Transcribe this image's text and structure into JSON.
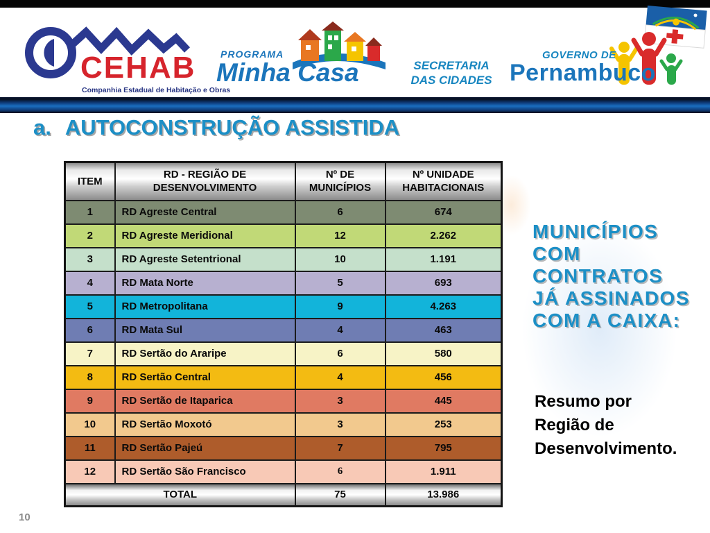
{
  "header": {
    "cehab": {
      "name": "CEHAB",
      "subtitle": "Companhia Estadual de Habitação e Obras"
    },
    "minha_casa": {
      "programa": "PROGRAMA",
      "title": "Minha Casa"
    },
    "secretaria": {
      "line1": "SECRETARIA",
      "line2": "DAS CIDADES"
    },
    "governo": {
      "line1": "GOVERNO DE",
      "line2": "Pernambuco"
    }
  },
  "slide": {
    "title_marker": "a.",
    "title": "AUTOCONSTRUÇÃO ASSISTIDA",
    "page_number": "10"
  },
  "table": {
    "columns": [
      "ITEM",
      "RD - REGIÃO DE DESENVOLVIMENTO",
      "Nº DE MUNICÍPIOS",
      "Nº UNIDADE HABITACIONAIS"
    ],
    "rows": [
      {
        "item": "1",
        "rd": "RD Agreste Central",
        "municipios": "6",
        "unidades": "674",
        "color": "#7E8B72"
      },
      {
        "item": "2",
        "rd": "RD Agreste Meridional",
        "municipios": "12",
        "unidades": "2.262",
        "color": "#C1D977"
      },
      {
        "item": "3",
        "rd": "RD Agreste Setentrional",
        "municipios": "10",
        "unidades": "1.191",
        "color": "#C5E0CB"
      },
      {
        "item": "4",
        "rd": "RD Mata Norte",
        "municipios": "5",
        "unidades": "693",
        "color": "#B7B0D0"
      },
      {
        "item": "5",
        "rd": "RD Metropolitana",
        "municipios": "9",
        "unidades": "4.263",
        "color": "#12B4DA"
      },
      {
        "item": "6",
        "rd": "RD Mata Sul",
        "municipios": "4",
        "unidades": "463",
        "color": "#6F7DB3"
      },
      {
        "item": "7",
        "rd": "RD Sertão do Araripe",
        "municipios": "6",
        "unidades": "580",
        "color": "#F7F3C6"
      },
      {
        "item": "8",
        "rd": "RD Sertão Central",
        "municipios": "4",
        "unidades": "456",
        "color": "#F3BB12"
      },
      {
        "item": "9",
        "rd": "RD Sertão de Itaparica",
        "municipios": "3",
        "unidades": "445",
        "color": "#E07A62"
      },
      {
        "item": "10",
        "rd": "RD Sertão Moxotó",
        "municipios": "3",
        "unidades": "253",
        "color": "#F2C98E"
      },
      {
        "item": "11",
        "rd": "RD Sertão Pajeú",
        "municipios": "7",
        "unidades": "795",
        "color": "#AE5C2B"
      },
      {
        "item": "12",
        "rd": "RD Sertão São Francisco",
        "municipios": "6",
        "unidades": "1.911",
        "color": "#F8C9B6",
        "municipios_serif": true
      }
    ],
    "total": {
      "label": "TOTAL",
      "municipios": "75",
      "unidades": "13.986"
    }
  },
  "side": {
    "caixa": {
      "line1": "MUNICÍPIOS",
      "line2": "COM",
      "line3": "CONTRATOS",
      "line4": "JÁ ASSINADOS",
      "line5": "COM A CAIXA:"
    },
    "resumo": {
      "line1": "Resumo por",
      "line2": "Região de",
      "line3": "Desenvolvimento."
    }
  },
  "colors": {
    "accent_blue": "#1C8FC6",
    "logo_blue": "#1B75BB",
    "cehab_red": "#D6242C",
    "cehab_blue": "#2B3990",
    "divider_blue": "#1A6EC0",
    "metallic_gray": "#BFBFBF",
    "top_bar": "#050505",
    "page_number_gray": "#8B8B8B"
  }
}
